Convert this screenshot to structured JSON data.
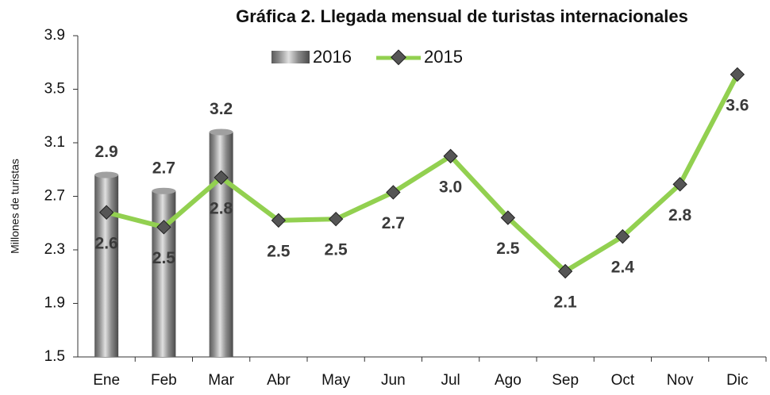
{
  "chart_data": {
    "type": "bar_line",
    "title": "Gráfica 2. Llegada mensual de turistas internacionales",
    "y_label": "Millones de turistas",
    "categories": [
      "Ene",
      "Feb",
      "Mar",
      "Abr",
      "May",
      "Jun",
      "Jul",
      "Ago",
      "Sep",
      "Oct",
      "Nov",
      "Dic"
    ],
    "series": [
      {
        "name": "2016",
        "kind": "bar",
        "color": "#7f7f7f",
        "values": [
          2.86,
          2.74,
          3.18,
          null,
          null,
          null,
          null,
          null,
          null,
          null,
          null,
          null
        ],
        "value_labels": [
          "2.9",
          "2.7",
          "3.2",
          null,
          null,
          null,
          null,
          null,
          null,
          null,
          null,
          null
        ]
      },
      {
        "name": "2015",
        "kind": "line",
        "color": "#92d050",
        "values": [
          2.58,
          2.47,
          2.84,
          2.52,
          2.53,
          2.73,
          3.0,
          2.54,
          2.14,
          2.4,
          2.79,
          3.61
        ],
        "value_labels": [
          "2.6",
          "2.5",
          "2.8",
          "2.5",
          "2.5",
          "2.7",
          "3.0",
          "2.5",
          "2.1",
          "2.4",
          "2.8",
          "3.6"
        ]
      }
    ],
    "ylim": [
      1.5,
      3.9
    ],
    "yticks": [
      1.5,
      1.9,
      2.3,
      2.7,
      3.1,
      3.5,
      3.9
    ],
    "grid": false
  }
}
